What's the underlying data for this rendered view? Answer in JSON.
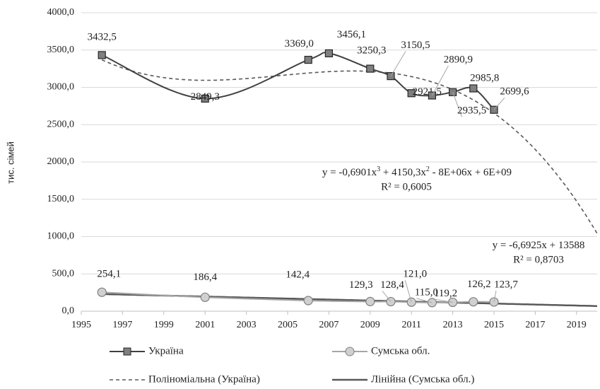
{
  "chart_data": {
    "type": "line",
    "y_label": "тис. сімей",
    "xlim": [
      1995,
      2020
    ],
    "xticks": [
      1995,
      1997,
      1999,
      2001,
      2003,
      2005,
      2007,
      2009,
      2011,
      2013,
      2015,
      2017,
      2019
    ],
    "ylim": [
      0,
      4000
    ],
    "yticks": [
      {
        "value": 0,
        "label": "0,0"
      },
      {
        "value": 500,
        "label": "500,0"
      },
      {
        "value": 1000,
        "label": "1000,0"
      },
      {
        "value": 1500,
        "label": "1500,0"
      },
      {
        "value": 2000,
        "label": "2000,0"
      },
      {
        "value": 2500,
        "label": "2500,0"
      },
      {
        "value": 3000,
        "label": "3000,0"
      },
      {
        "value": 3500,
        "label": "3500,0"
      },
      {
        "value": {
          "value": 4000,
          "label": "4000,0"
        },
        "label": "4000,0"
      }
    ],
    "grid": true,
    "legend": "bottom",
    "series": [
      {
        "name": "Україна",
        "color": "#404040",
        "marker": "square",
        "x": [
          1996,
          2001,
          2006,
          2007,
          2009,
          2010,
          2011,
          2012,
          2013,
          2014,
          2015
        ],
        "values": [
          3432.5,
          2849.3,
          3369.0,
          3456.1,
          3250.3,
          3150.5,
          2921.5,
          2890.9,
          2935.5,
          2985.8,
          2699.6
        ],
        "value_labels": [
          "3432,5",
          "2849,3",
          "3369,0",
          "3456,1",
          "3250,3",
          "3150,5",
          "2921,5",
          "2890,9",
          "2935,5",
          "2985,8",
          "2699,6"
        ]
      },
      {
        "name": "Сумська обл.",
        "color": "#a6a6a6",
        "marker": "circle",
        "x": [
          1996,
          2001,
          2006,
          2009,
          2010,
          2011,
          2012,
          2013,
          2014,
          2015
        ],
        "values": [
          254.1,
          186.4,
          142.4,
          129.3,
          128.4,
          121.0,
          115.0,
          119.2,
          126.2,
          123.7
        ],
        "value_labels": [
          "254,1",
          "186,4",
          "142,4",
          "129,3",
          "128,4",
          "121,0",
          "115,0",
          "119,2",
          "126,2",
          "123,7"
        ]
      }
    ],
    "trendlines": [
      {
        "name": "Поліноміальна (Україна)",
        "series": 0,
        "order": 3,
        "dashed": true,
        "color": "#595959",
        "equation": [
          "y = -0,6901x",
          "3",
          " + 4150,3x",
          "2",
          " - 8E+06x + 6E+09"
        ],
        "r2": "R² = 0,6005"
      },
      {
        "name": "Лінійна (Сумська обл.)",
        "series": 1,
        "order": 1,
        "dashed": false,
        "color": "#595959",
        "equation": [
          "y = -6,6925x + 13588"
        ],
        "r2": "R² = 0,8703"
      }
    ]
  }
}
